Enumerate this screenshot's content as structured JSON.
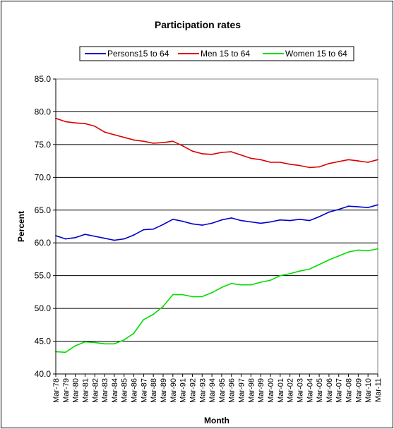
{
  "chart_data": {
    "type": "line",
    "title": "Participation rates",
    "xlabel": "Month",
    "ylabel": "Percent",
    "ylim": [
      40.0,
      85.0
    ],
    "yticks": [
      "40.0",
      "45.0",
      "50.0",
      "55.0",
      "60.0",
      "65.0",
      "70.0",
      "75.0",
      "80.0",
      "85.0"
    ],
    "grid": "horizontal",
    "legend_position": "top",
    "plot_background": "#ffffff",
    "x_start": "Mar-78",
    "x_end": "Mar-11",
    "categories": [
      "Mar-78",
      "Mar-79",
      "Mar-80",
      "Mar-81",
      "Mar-82",
      "Mar-83",
      "Mar-84",
      "Mar-85",
      "Mar-86",
      "Mar-87",
      "Mar-88",
      "Mar-89",
      "Mar-90",
      "Mar-91",
      "Mar-92",
      "Mar-93",
      "Mar-94",
      "Mar-95",
      "Mar-96",
      "Mar-97",
      "Mar-98",
      "Mar-99",
      "Mar-00",
      "Mar-01",
      "Mar-02",
      "Mar-03",
      "Mar-04",
      "Mar-05",
      "Mar-06",
      "Mar-07",
      "Mar-08",
      "Mar-09",
      "Mar-10",
      "Mar-11"
    ],
    "series": [
      {
        "name": "Persons15 to 64",
        "color": "#0000cc",
        "values": [
          61.1,
          60.6,
          60.8,
          61.3,
          61.0,
          60.7,
          60.4,
          60.6,
          61.2,
          62.0,
          62.1,
          62.8,
          63.6,
          63.3,
          62.9,
          62.7,
          63.0,
          63.5,
          63.8,
          63.4,
          63.2,
          63.0,
          63.2,
          63.5,
          63.4,
          63.6,
          63.4,
          64.0,
          64.7,
          65.1,
          65.6,
          65.5,
          65.4,
          65.8
        ]
      },
      {
        "name": "Men 15 to 64",
        "color": "#dd0000",
        "values": [
          79.0,
          78.5,
          78.3,
          78.2,
          77.8,
          76.9,
          76.5,
          76.1,
          75.7,
          75.5,
          75.2,
          75.3,
          75.5,
          74.8,
          74.0,
          73.6,
          73.5,
          73.8,
          73.9,
          73.4,
          72.9,
          72.7,
          72.3,
          72.3,
          72.0,
          71.8,
          71.5,
          71.6,
          72.1,
          72.4,
          72.7,
          72.5,
          72.3,
          72.7
        ]
      },
      {
        "name": "Women 15 to 64",
        "color": "#00dd00",
        "values": [
          43.4,
          43.3,
          44.3,
          44.9,
          44.8,
          44.6,
          44.6,
          45.2,
          46.2,
          48.3,
          49.1,
          50.3,
          52.1,
          52.1,
          51.8,
          51.8,
          52.4,
          53.2,
          53.8,
          53.6,
          53.6,
          54.0,
          54.3,
          55.0,
          55.3,
          55.7,
          56.0,
          56.7,
          57.4,
          58.0,
          58.6,
          58.9,
          58.8,
          59.1
        ]
      }
    ]
  }
}
